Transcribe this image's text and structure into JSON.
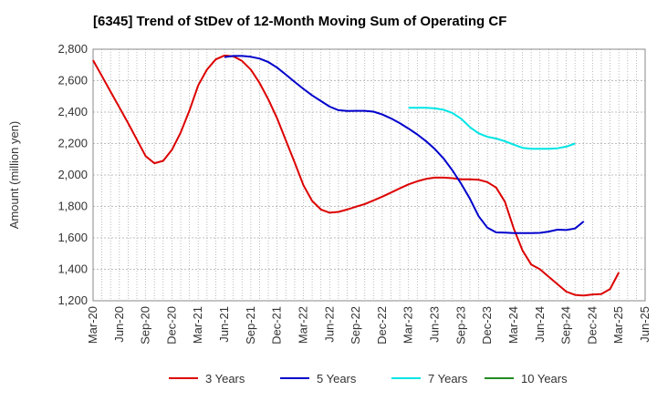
{
  "chart_data": {
    "type": "line",
    "title": "[6345]  Trend of StDev of 12-Month Moving Sum of Operating CF",
    "xlabel": "",
    "ylabel": "Amount (million yen)",
    "ylim": [
      1200,
      2800
    ],
    "yticks": [
      1200,
      1400,
      1600,
      1800,
      2000,
      2200,
      2400,
      2600,
      2800
    ],
    "ytick_labels": [
      "1,200",
      "1,400",
      "1,600",
      "1,800",
      "2,000",
      "2,200",
      "2,400",
      "2,600",
      "2,800"
    ],
    "xlim": [
      0,
      63
    ],
    "xtick_labels": [
      "Mar-20",
      "Jun-20",
      "Sep-20",
      "Dec-20",
      "Mar-21",
      "Jun-21",
      "Sep-21",
      "Dec-21",
      "Mar-22",
      "Jun-22",
      "Sep-22",
      "Dec-22",
      "Mar-23",
      "Jun-23",
      "Sep-23",
      "Dec-23",
      "Mar-24",
      "Jun-24",
      "Sep-24",
      "Dec-24",
      "Mar-25",
      "Jun-25"
    ],
    "grid": true,
    "legend_position": "bottom",
    "series": [
      {
        "name": "3 Years",
        "color": "#dd0000",
        "start": 0,
        "values": [
          2730,
          2630,
          2530,
          2430,
          2330,
          2225,
          2120,
          2075,
          2090,
          2160,
          2270,
          2410,
          2570,
          2670,
          2735,
          2760,
          2755,
          2725,
          2670,
          2585,
          2480,
          2360,
          2220,
          2080,
          1935,
          1835,
          1780,
          1760,
          1765,
          1780,
          1798,
          1815,
          1838,
          1862,
          1888,
          1915,
          1940,
          1960,
          1975,
          1983,
          1983,
          1980,
          1972,
          1972,
          1970,
          1955,
          1920,
          1830,
          1660,
          1520,
          1430,
          1400,
          1352,
          1305,
          1258,
          1237,
          1233,
          1240,
          1243,
          1275,
          1380
        ]
      },
      {
        "name": "5 Years",
        "color": "#0000cc",
        "start": 15,
        "values": [
          2750,
          2757,
          2757,
          2752,
          2740,
          2718,
          2683,
          2638,
          2592,
          2548,
          2506,
          2470,
          2435,
          2412,
          2407,
          2408,
          2408,
          2403,
          2385,
          2360,
          2330,
          2295,
          2258,
          2215,
          2165,
          2105,
          2030,
          1945,
          1850,
          1738,
          1665,
          1635,
          1633,
          1630,
          1630,
          1630,
          1632,
          1640,
          1652,
          1650,
          1660,
          1705
        ]
      },
      {
        "name": "7 Years",
        "color": "#00e5e5",
        "start": 36,
        "values": [
          2428,
          2428,
          2428,
          2424,
          2415,
          2395,
          2358,
          2305,
          2265,
          2243,
          2232,
          2215,
          2193,
          2173,
          2167,
          2167,
          2167,
          2170,
          2180,
          2200
        ]
      },
      {
        "name": "10 Years",
        "color": "#228B22",
        "start": 0,
        "values": []
      }
    ]
  }
}
